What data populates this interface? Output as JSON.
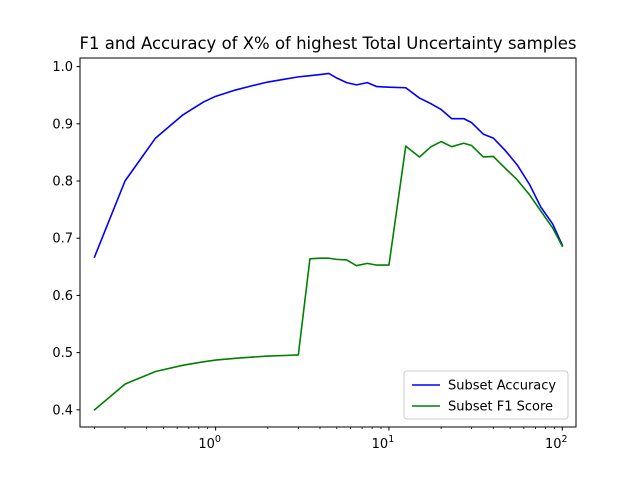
{
  "chart_data": {
    "type": "line",
    "title": "F1 and Accuracy of X% of highest Total Uncertainty samples",
    "xlabel": "",
    "ylabel": "",
    "xscale": "log",
    "xlim": [
      0.165,
      120
    ],
    "ylim": [
      0.37,
      1.015
    ],
    "x_ticks": [
      {
        "value": 1,
        "base": "10",
        "exp": "0"
      },
      {
        "value": 10,
        "base": "10",
        "exp": "1"
      },
      {
        "value": 100,
        "base": "10",
        "exp": "2"
      }
    ],
    "y_ticks": [
      {
        "value": 0.4,
        "label": "0.4"
      },
      {
        "value": 0.5,
        "label": "0.5"
      },
      {
        "value": 0.6,
        "label": "0.6"
      },
      {
        "value": 0.7,
        "label": "0.7"
      },
      {
        "value": 0.8,
        "label": "0.8"
      },
      {
        "value": 0.9,
        "label": "0.9"
      },
      {
        "value": 1.0,
        "label": "1.0"
      }
    ],
    "grid": false,
    "legend_position": "lower-right",
    "series": [
      {
        "name": "Subset Accuracy",
        "color": "#0000ff",
        "points": [
          [
            0.2,
            0.667
          ],
          [
            0.3,
            0.8
          ],
          [
            0.45,
            0.875
          ],
          [
            0.65,
            0.916
          ],
          [
            0.85,
            0.938
          ],
          [
            1.0,
            0.948
          ],
          [
            1.3,
            0.959
          ],
          [
            1.6,
            0.966
          ],
          [
            2.0,
            0.973
          ],
          [
            2.5,
            0.978
          ],
          [
            3.0,
            0.982
          ],
          [
            3.5,
            0.984
          ],
          [
            4.0,
            0.986
          ],
          [
            4.5,
            0.988
          ],
          [
            5.0,
            0.98
          ],
          [
            5.7,
            0.972
          ],
          [
            6.5,
            0.968
          ],
          [
            7.5,
            0.972
          ],
          [
            8.5,
            0.965
          ],
          [
            10.0,
            0.964
          ],
          [
            12.5,
            0.963
          ],
          [
            15.0,
            0.945
          ],
          [
            17.5,
            0.935
          ],
          [
            20.0,
            0.925
          ],
          [
            23.0,
            0.909
          ],
          [
            27.0,
            0.909
          ],
          [
            30.0,
            0.902
          ],
          [
            35.0,
            0.882
          ],
          [
            40.0,
            0.875
          ],
          [
            47.0,
            0.853
          ],
          [
            55.0,
            0.828
          ],
          [
            65.0,
            0.793
          ],
          [
            75.0,
            0.755
          ],
          [
            88.0,
            0.725
          ],
          [
            100.0,
            0.688
          ]
        ]
      },
      {
        "name": "Subset F1 Score",
        "color": "#008000",
        "points": [
          [
            0.2,
            0.4
          ],
          [
            0.3,
            0.445
          ],
          [
            0.45,
            0.467
          ],
          [
            0.65,
            0.478
          ],
          [
            0.85,
            0.484
          ],
          [
            1.0,
            0.487
          ],
          [
            1.3,
            0.49
          ],
          [
            1.6,
            0.492
          ],
          [
            2.0,
            0.494
          ],
          [
            2.5,
            0.495
          ],
          [
            3.0,
            0.496
          ],
          [
            3.5,
            0.664
          ],
          [
            4.0,
            0.665
          ],
          [
            4.5,
            0.665
          ],
          [
            5.0,
            0.663
          ],
          [
            5.7,
            0.662
          ],
          [
            6.5,
            0.652
          ],
          [
            7.5,
            0.656
          ],
          [
            8.5,
            0.653
          ],
          [
            10.0,
            0.653
          ],
          [
            12.5,
            0.861
          ],
          [
            15.0,
            0.842
          ],
          [
            17.5,
            0.86
          ],
          [
            20.0,
            0.869
          ],
          [
            23.0,
            0.86
          ],
          [
            27.0,
            0.866
          ],
          [
            30.0,
            0.862
          ],
          [
            35.0,
            0.842
          ],
          [
            40.0,
            0.843
          ],
          [
            47.0,
            0.822
          ],
          [
            55.0,
            0.802
          ],
          [
            65.0,
            0.775
          ],
          [
            75.0,
            0.748
          ],
          [
            88.0,
            0.718
          ],
          [
            100.0,
            0.686
          ]
        ]
      }
    ]
  }
}
